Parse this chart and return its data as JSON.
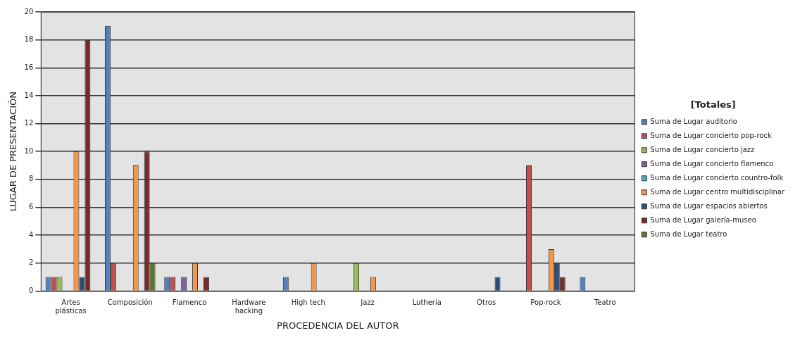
{
  "chart_data": {
    "type": "bar",
    "xlabel": "PROCEDENCIA DEL AUTOR",
    "ylabel": "LUGAR DE PRESENTACIÓN",
    "legend_title": "[Totales]",
    "legend": "right",
    "categories": [
      "Artes plásticas",
      "Composición",
      "Flamenco",
      "Hardware hacking",
      "High tech",
      "Jazz",
      "Lutheria",
      "Otros",
      "Pop-rock",
      "Teatro"
    ],
    "series": [
      {
        "name": "Suma de Lugar auditorio",
        "color": "#4f81bd",
        "values": [
          1,
          19,
          1,
          0,
          1,
          0,
          0,
          0,
          0,
          1
        ]
      },
      {
        "name": "Suma de Lugar concierto pop-rock",
        "color": "#c0504d",
        "values": [
          1,
          2,
          1,
          0,
          0,
          0,
          0,
          0,
          9,
          0
        ]
      },
      {
        "name": "Suma de Lugar concierto jazz",
        "color": "#9bbb59",
        "values": [
          1,
          0,
          0,
          0,
          0,
          2,
          0,
          0,
          0,
          0
        ]
      },
      {
        "name": "Suma de Lugar concierto flamenco",
        "color": "#8064a2",
        "values": [
          0,
          0,
          1,
          0,
          0,
          0,
          0,
          0,
          0,
          0
        ]
      },
      {
        "name": "Suma de Lugar concierto countro-folk",
        "color": "#4bacc6",
        "values": [
          0,
          0,
          0,
          0,
          0,
          0,
          0,
          0,
          0,
          0
        ]
      },
      {
        "name": "Suma de Lugar centro multidisciplinar",
        "color": "#f79646",
        "values": [
          10,
          9,
          2,
          0,
          2,
          1,
          0,
          0,
          3,
          0
        ]
      },
      {
        "name": "Suma de Lugar espacios abiertos",
        "color": "#2c4d75",
        "values": [
          1,
          0,
          0,
          0,
          0,
          0,
          0,
          1,
          2,
          0
        ]
      },
      {
        "name": "Suma de Lugar galería-museo",
        "color": "#772c2a",
        "values": [
          18,
          10,
          1,
          0,
          0,
          0,
          0,
          0,
          1,
          0
        ]
      },
      {
        "name": "Suma de Lugar teatro",
        "color": "#5f7530",
        "values": [
          0,
          2,
          0,
          0,
          0,
          0,
          0,
          0,
          0,
          0
        ]
      }
    ],
    "ylim": [
      0,
      20
    ],
    "yticks": [
      0,
      2,
      4,
      6,
      8,
      10,
      12,
      14,
      16,
      18,
      20
    ],
    "grid": "y"
  }
}
